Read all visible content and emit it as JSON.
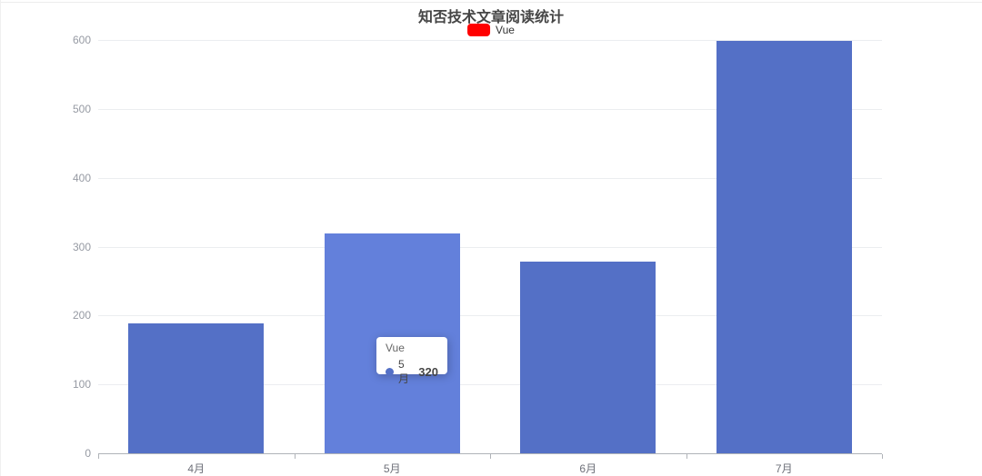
{
  "chart": {
    "title": "知否技术文章阅读统计",
    "legend": {
      "label": "Vue",
      "color": "#ff0000"
    },
    "tooltip": {
      "series": "Vue",
      "category": "5月",
      "value": "320"
    }
  },
  "chart_data": {
    "type": "bar",
    "title": "知否技术文章阅读统计",
    "categories": [
      "4月",
      "5月",
      "6月",
      "7月"
    ],
    "series": [
      {
        "name": "Vue",
        "values": [
          190,
          320,
          280,
          600
        ]
      }
    ],
    "xlabel": "",
    "ylabel": "",
    "ylim": [
      0,
      600
    ],
    "ytick_interval": 100,
    "ytick_labels": [
      "0",
      "100",
      "200",
      "300",
      "400",
      "500",
      "600"
    ],
    "grid": true,
    "legend_position": "top",
    "highlighted_index": 1,
    "colors": {
      "bar": "#5470c6",
      "bar_highlight": "#6380db",
      "legend_marker": "#ff0000",
      "grid_line": "#ebedf0",
      "axis_line": "#b0b3b8",
      "y_label": "#969aa3",
      "x_label": "#6e7079",
      "title_text": "#464646"
    }
  }
}
